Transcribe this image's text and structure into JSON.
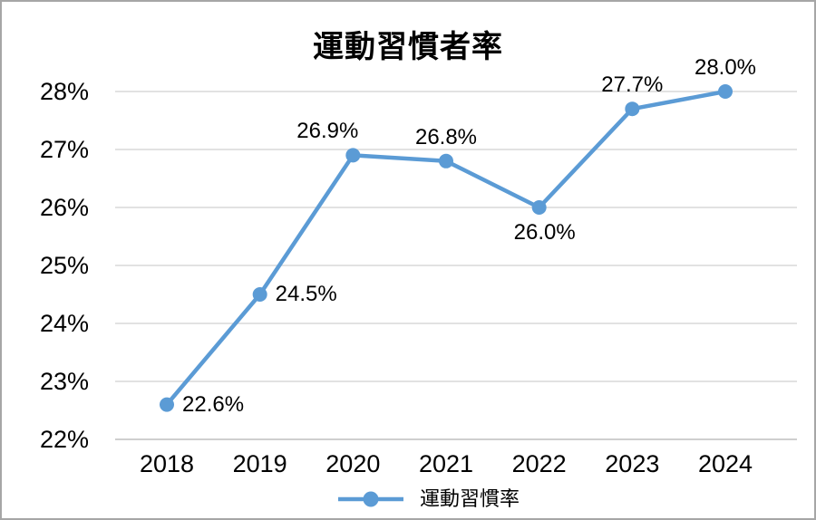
{
  "colors": {
    "line": "#5B9BD5",
    "marker": "#5B9BD5",
    "gridline": "#D9D9D9",
    "axis": "#BFBFBF",
    "text": "#000000",
    "frame_border": "#A6A6A6"
  },
  "chart_data": {
    "type": "line",
    "title": "運動習慣者率",
    "categories": [
      "2018",
      "2019",
      "2020",
      "2021",
      "2022",
      "2023",
      "2024"
    ],
    "series": [
      {
        "name": "運動習慣率",
        "values": [
          22.6,
          24.5,
          26.9,
          26.8,
          26.0,
          27.7,
          28.0
        ]
      }
    ],
    "data_labels": [
      "22.6%",
      "24.5%",
      "26.9%",
      "26.8%",
      "26.0%",
      "27.7%",
      "28.0%"
    ],
    "data_label_positions": [
      "right",
      "right",
      "above-left",
      "above",
      "below",
      "above",
      "above"
    ],
    "y_ticks": [
      22,
      23,
      24,
      25,
      26,
      27,
      28
    ],
    "y_tick_labels": [
      "22%",
      "23%",
      "24%",
      "25%",
      "26%",
      "27%",
      "28%"
    ],
    "ylim": [
      22,
      28
    ],
    "grid": "horizontal",
    "legend_position": "bottom",
    "legend_label": "運動習慣率"
  }
}
